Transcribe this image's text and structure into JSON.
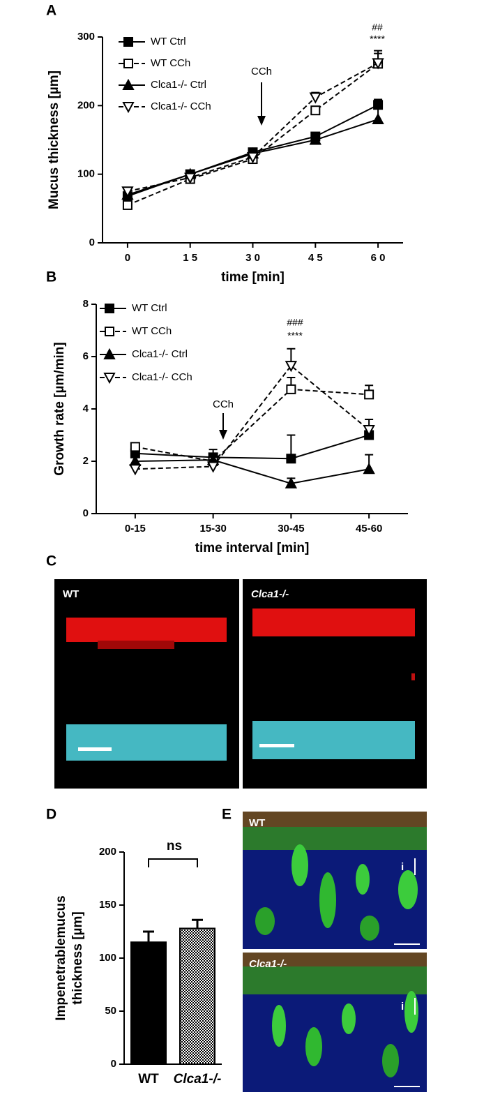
{
  "panel_labels": [
    "A",
    "B",
    "C",
    "D",
    "E"
  ],
  "images": {
    "C": [
      "WT",
      "Clca1-/-"
    ],
    "E": [
      "WT",
      "Clca1-/-",
      "i",
      "i"
    ]
  },
  "chart_data": [
    {
      "type": "line",
      "ylabel": "Mucus thickness [µm]",
      "xlabel": "time  [min]",
      "x": [
        0,
        15,
        30,
        45,
        60
      ],
      "xlim": [
        -6,
        66
      ],
      "xticks": [
        {
          "value": 0,
          "label": "0"
        },
        {
          "value": 15,
          "label": "1 5"
        },
        {
          "value": 30,
          "label": "3 0"
        },
        {
          "value": 45,
          "label": "4 5"
        },
        {
          "value": 60,
          "label": "6 0"
        }
      ],
      "ylim": [
        0,
        300
      ],
      "yticks": [
        0,
        100,
        200,
        300
      ],
      "annotations": [
        "CCh",
        "##",
        "****"
      ],
      "series": [
        {
          "name": "WT Ctrl",
          "color": "#000000",
          "marker": "square",
          "linestyle": "solid",
          "values": [
            68,
            100,
            132,
            155,
            201
          ],
          "errors": [
            null,
            null,
            null,
            null,
            8
          ]
        },
        {
          "name": "WT CCh",
          "color": "#000000",
          "marker": "square-open",
          "linestyle": "dashed",
          "values": [
            55,
            93,
            122,
            193,
            261
          ],
          "errors": [
            null,
            null,
            null,
            null,
            15
          ]
        },
        {
          "name": "Clca1-/- Ctrl",
          "color": "#000000",
          "marker": "triangle",
          "linestyle": "solid",
          "values": [
            70,
            100,
            130,
            150,
            180
          ],
          "errors": [
            null,
            null,
            null,
            8,
            18
          ]
        },
        {
          "name": "Clca1-/- CCh",
          "color": "#000000",
          "marker": "triangle-down-open",
          "linestyle": "dashed",
          "values": [
            75,
            95,
            125,
            212,
            262
          ],
          "errors": [
            null,
            null,
            null,
            7,
            18
          ]
        }
      ]
    },
    {
      "type": "line",
      "ylabel": "Growth rate [µm/min]",
      "xlabel": "time interval [min]",
      "categories": [
        "0-15",
        "15-30",
        "30-45",
        "45-60"
      ],
      "ylim": [
        0,
        8
      ],
      "yticks": [
        0,
        2,
        4,
        6,
        8
      ],
      "annotations": [
        "CCh",
        "###",
        "****"
      ],
      "series": [
        {
          "name": "WT Ctrl",
          "color": "#000000",
          "marker": "square",
          "linestyle": "solid",
          "values": [
            2.3,
            2.15,
            2.1,
            3.0
          ],
          "errors": [
            null,
            0.3,
            0.9,
            null
          ]
        },
        {
          "name": "WT CCh",
          "color": "#000000",
          "marker": "square-open",
          "linestyle": "dashed",
          "values": [
            2.55,
            2.0,
            4.75,
            4.55
          ],
          "errors": [
            null,
            null,
            0.45,
            0.35
          ]
        },
        {
          "name": "Clca1-/- Ctrl",
          "color": "#000000",
          "marker": "triangle",
          "linestyle": "solid",
          "values": [
            2.0,
            2.05,
            1.15,
            1.7
          ],
          "errors": [
            null,
            null,
            0.2,
            0.55
          ]
        },
        {
          "name": "Clca1-/- CCh",
          "color": "#000000",
          "marker": "triangle-down-open",
          "linestyle": "dashed",
          "values": [
            1.7,
            1.8,
            5.65,
            3.2
          ],
          "errors": [
            null,
            null,
            0.65,
            0.4
          ]
        }
      ]
    },
    {
      "type": "bar",
      "ylabel": [
        "Impenetrablemucus",
        "thickness  [µm]"
      ],
      "categories": [
        "WT",
        "Clca1-/-"
      ],
      "values": [
        115,
        128
      ],
      "errors": [
        10,
        8
      ],
      "colors": [
        "#000000",
        "#000000"
      ],
      "patterns": [
        "solid",
        "checker"
      ],
      "ylim": [
        0,
        200
      ],
      "yticks": [
        0,
        50,
        100,
        150,
        200
      ],
      "annotations": [
        "ns"
      ]
    }
  ]
}
